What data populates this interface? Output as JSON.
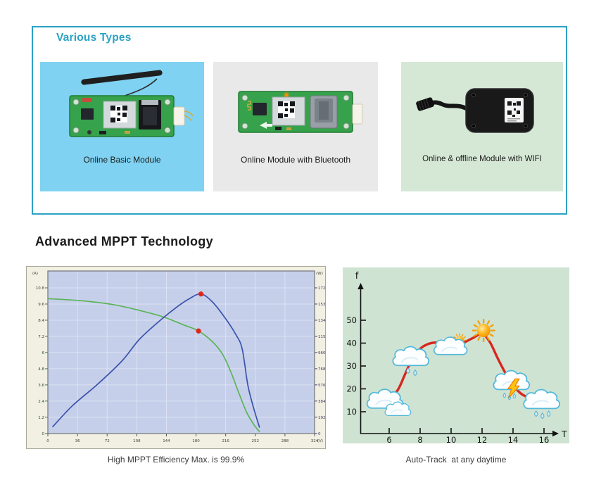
{
  "accent_color": "#2ba2c4",
  "various_types": {
    "title": "Various Types",
    "cards": [
      {
        "label": "Online Basic Module",
        "bg_color": "#7fd2f1",
        "image": "gsm-module-with-antenna"
      },
      {
        "label": "Online Module with Bluetooth",
        "bg_color": "#e9e9e9",
        "image": "module-with-bluetooth"
      },
      {
        "label": "Online & offline Module with WIFI",
        "bg_color": "#d5e8d6",
        "image": "wifi-offline-tracker"
      }
    ]
  },
  "mppt": {
    "title": "Advanced MPPT Technology",
    "left_caption": "High MPPT Efficiency Max. is 99.9%",
    "right_caption": "Auto-Track  at any daytime"
  },
  "chart_data": [
    {
      "type": "line",
      "name": "mppt-iv-power-curves",
      "xlabel": "(V)",
      "ylabel_left": "(A)",
      "ylabel_right": "(W)",
      "x_ticks": [
        0,
        36,
        72,
        108,
        144,
        180,
        216,
        252,
        288,
        324
      ],
      "y_ticks_left": [
        0,
        1.2,
        2.4,
        3.6,
        4.8,
        6,
        7.2,
        8.4,
        9.6,
        10.8
      ],
      "y_ticks_right": [
        0,
        192,
        384,
        576,
        768,
        960,
        1152,
        1344,
        1536,
        1728
      ],
      "xlim": [
        0,
        324
      ],
      "ylim_left": [
        0,
        10.8
      ],
      "ylim_right": [
        0,
        1728
      ],
      "grid": true,
      "plot_bg": "#c5cfea",
      "frame_bg": "#f1f0e2",
      "grid_color": "#dde2f4",
      "series": [
        {
          "name": "current",
          "axis": "left",
          "color": "#5bb457",
          "points": [
            [
              0,
              10.0
            ],
            [
              40,
              9.85
            ],
            [
              80,
              9.55
            ],
            [
              113,
              9.1
            ],
            [
              140,
              8.65
            ],
            [
              165,
              8.05
            ],
            [
              183,
              7.6
            ],
            [
              200,
              6.8
            ],
            [
              212,
              5.9
            ],
            [
              222,
              4.6
            ],
            [
              232,
              3.0
            ],
            [
              242,
              1.5
            ],
            [
              252,
              0.5
            ],
            [
              257,
              0.15
            ]
          ]
        },
        {
          "name": "power",
          "axis": "right",
          "color": "#3b52ad",
          "points": [
            [
              6,
              80
            ],
            [
              30,
              330
            ],
            [
              60,
              580
            ],
            [
              90,
              860
            ],
            [
              111,
              1115
            ],
            [
              135,
              1330
            ],
            [
              158,
              1510
            ],
            [
              172,
              1600
            ],
            [
              186,
              1655
            ],
            [
              200,
              1560
            ],
            [
              215,
              1375
            ],
            [
              228,
              1180
            ],
            [
              236,
              1005
            ],
            [
              243,
              570
            ],
            [
              250,
              300
            ],
            [
              257,
              75
            ]
          ]
        }
      ],
      "markers": [
        {
          "series": "power",
          "x": 186,
          "y": 1655,
          "color": "#e1251b"
        },
        {
          "series": "current",
          "x": 183,
          "y": 7.6,
          "color": "#e1251b"
        }
      ]
    },
    {
      "type": "line",
      "name": "auto-track-daytime",
      "xlabel": "T",
      "ylabel": "f",
      "x_ticks": [
        6,
        8,
        10,
        12,
        14,
        16
      ],
      "y_ticks": [
        10,
        20,
        30,
        40,
        50
      ],
      "xlim": [
        4.3,
        16.8
      ],
      "ylim": [
        0,
        62
      ],
      "grid": false,
      "bg": "#cfe3d2",
      "line_color": "#d8271e",
      "curve": [
        [
          6,
          14.5
        ],
        [
          6.6,
          20
        ],
        [
          7.0,
          26
        ],
        [
          7.45,
          32.5
        ],
        [
          8.0,
          37.5
        ],
        [
          8.6,
          39.8
        ],
        [
          9.2,
          40.2
        ],
        [
          9.7,
          39.2
        ],
        [
          10.1,
          38.6
        ],
        [
          10.8,
          40.2
        ],
        [
          11.4,
          42.2
        ],
        [
          12.0,
          44.0
        ],
        [
          12.5,
          40.5
        ],
        [
          13.0,
          33.5
        ],
        [
          13.5,
          27.0
        ],
        [
          14.0,
          21.7
        ],
        [
          14.5,
          18.0
        ],
        [
          15.0,
          16.2
        ],
        [
          15.5,
          15.2
        ],
        [
          15.9,
          14.6
        ]
      ],
      "icons": [
        {
          "type": "clouds",
          "t": 6.1,
          "f": 12.5
        },
        {
          "type": "rain-cloud",
          "t": 7.45,
          "f": 33.0
        },
        {
          "type": "cloud-sun",
          "t": 10.1,
          "f": 38.5
        },
        {
          "type": "sun",
          "t": 12.1,
          "f": 45.5
        },
        {
          "type": "storm-cloud",
          "t": 13.95,
          "f": 22.5
        },
        {
          "type": "rain-cloud3",
          "t": 15.9,
          "f": 14.2
        }
      ]
    }
  ]
}
